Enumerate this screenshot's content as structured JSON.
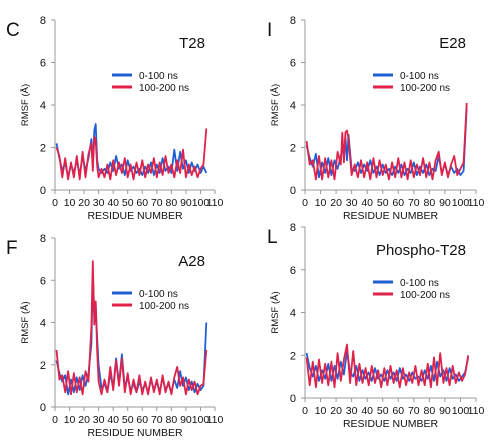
{
  "chart_data": [
    {
      "type": "line",
      "panel_letter": "C",
      "title": "T28",
      "xlabel": "RESIDUE NUMBER",
      "ylabel": "RMSF (Å)",
      "xlim": [
        0,
        110
      ],
      "ylim": [
        0,
        8
      ],
      "xticks": [
        0,
        10,
        20,
        30,
        40,
        50,
        60,
        70,
        80,
        90,
        100,
        110
      ],
      "yticks": [
        0,
        2,
        4,
        6,
        8
      ],
      "legend_position": "top-right",
      "grid": false,
      "series": [
        {
          "name": "0-100 ns",
          "color": "#1f5fd6",
          "x": [
            1,
            3,
            5,
            7,
            9,
            11,
            13,
            15,
            17,
            19,
            21,
            23,
            25,
            26,
            27,
            28,
            29,
            30,
            32,
            34,
            36,
            38,
            40,
            42,
            44,
            46,
            48,
            50,
            52,
            54,
            56,
            58,
            60,
            62,
            64,
            66,
            68,
            70,
            72,
            74,
            76,
            78,
            80,
            82,
            84,
            86,
            88,
            90,
            92,
            94,
            96,
            98,
            100,
            102,
            104
          ],
          "values": [
            2.2,
            1.5,
            0.9,
            1.3,
            0.6,
            1.2,
            0.8,
            1.4,
            0.7,
            1.6,
            0.9,
            1.5,
            2.4,
            1.2,
            2.8,
            3.1,
            1.4,
            1.0,
            0.8,
            1.0,
            0.8,
            1.3,
            0.9,
            1.6,
            1.0,
            1.2,
            0.7,
            1.4,
            0.9,
            1.1,
            0.8,
            1.0,
            0.7,
            1.1,
            0.8,
            1.3,
            0.7,
            1.2,
            0.8,
            1.5,
            0.9,
            1.1,
            0.8,
            1.9,
            0.9,
            1.8,
            1.0,
            1.4,
            0.8,
            1.3,
            0.9,
            1.2,
            0.8,
            1.1,
            0.8
          ]
        },
        {
          "name": "100-200 ns",
          "color": "#e0224a",
          "x": [
            1,
            3,
            5,
            7,
            9,
            11,
            13,
            15,
            17,
            19,
            21,
            23,
            25,
            26,
            27,
            28,
            29,
            30,
            32,
            34,
            36,
            38,
            40,
            42,
            44,
            46,
            48,
            50,
            52,
            54,
            56,
            58,
            60,
            62,
            64,
            66,
            68,
            70,
            72,
            74,
            76,
            78,
            80,
            82,
            84,
            86,
            88,
            90,
            92,
            94,
            96,
            98,
            100,
            102,
            104
          ],
          "values": [
            2.0,
            1.6,
            0.6,
            1.5,
            0.5,
            1.3,
            0.6,
            1.6,
            0.5,
            1.8,
            0.6,
            1.7,
            2.2,
            0.9,
            2.5,
            2.3,
            1.1,
            0.6,
            1.0,
            0.6,
            1.2,
            0.5,
            1.4,
            0.7,
            1.3,
            0.8,
            1.5,
            0.6,
            1.2,
            0.5,
            1.3,
            0.7,
            1.4,
            0.6,
            1.2,
            0.8,
            1.5,
            0.6,
            1.3,
            0.7,
            1.6,
            0.8,
            1.2,
            0.6,
            1.4,
            0.8,
            1.9,
            0.6,
            1.2,
            0.7,
            1.1,
            0.6,
            1.0,
            1.2,
            2.9
          ]
        }
      ]
    },
    {
      "type": "line",
      "panel_letter": "I",
      "title": "E28",
      "xlabel": "RESIDUE NUMBER",
      "ylabel": "RMSF (Å)",
      "xlim": [
        0,
        110
      ],
      "ylim": [
        0,
        8
      ],
      "xticks": [
        0,
        10,
        20,
        30,
        40,
        50,
        60,
        70,
        80,
        90,
        100,
        110
      ],
      "yticks": [
        0,
        2,
        4,
        6,
        8
      ],
      "legend_position": "top-right",
      "grid": false,
      "series": [
        {
          "name": "0-100 ns",
          "color": "#1f5fd6",
          "x": [
            1,
            3,
            5,
            7,
            9,
            11,
            13,
            15,
            17,
            19,
            21,
            23,
            24,
            25,
            26,
            27,
            28,
            30,
            32,
            34,
            36,
            38,
            40,
            42,
            44,
            46,
            48,
            50,
            52,
            54,
            56,
            58,
            60,
            62,
            64,
            66,
            68,
            70,
            72,
            74,
            76,
            78,
            80,
            82,
            84,
            86,
            88,
            90,
            92,
            94,
            96,
            98,
            100,
            102,
            104
          ],
          "values": [
            2.1,
            1.5,
            1.1,
            1.7,
            0.6,
            1.3,
            0.8,
            1.5,
            0.7,
            1.4,
            1.0,
            1.6,
            2.0,
            1.6,
            2.5,
            1.4,
            2.6,
            1.0,
            0.9,
            1.3,
            0.8,
            1.2,
            0.9,
            1.4,
            0.8,
            1.1,
            0.7,
            1.2,
            0.8,
            1.0,
            0.7,
            1.1,
            0.8,
            1.2,
            0.7,
            1.0,
            0.8,
            1.3,
            0.7,
            1.1,
            0.8,
            1.2,
            0.7,
            1.0,
            0.9,
            1.6,
            0.8,
            1.2,
            0.7,
            1.1,
            0.8,
            1.0,
            0.7,
            0.9,
            3.9
          ]
        },
        {
          "name": "100-200 ns",
          "color": "#e0224a",
          "x": [
            1,
            3,
            5,
            7,
            9,
            11,
            13,
            15,
            17,
            19,
            21,
            23,
            24,
            25,
            26,
            27,
            28,
            30,
            32,
            34,
            36,
            38,
            40,
            42,
            44,
            46,
            48,
            50,
            52,
            54,
            56,
            58,
            60,
            62,
            64,
            66,
            68,
            70,
            72,
            74,
            76,
            78,
            80,
            82,
            84,
            86,
            88,
            90,
            92,
            94,
            96,
            98,
            100,
            102,
            104
          ],
          "values": [
            2.3,
            1.2,
            1.4,
            0.5,
            1.6,
            0.5,
            1.5,
            0.6,
            1.4,
            0.5,
            1.8,
            1.2,
            2.7,
            1.3,
            2.7,
            2.8,
            2.4,
            0.7,
            1.2,
            0.6,
            1.4,
            0.6,
            1.3,
            0.5,
            1.5,
            0.6,
            1.4,
            0.7,
            1.2,
            0.5,
            1.3,
            0.6,
            1.5,
            0.6,
            1.3,
            0.5,
            1.4,
            0.6,
            1.2,
            0.7,
            1.5,
            0.6,
            1.3,
            0.5,
            1.4,
            1.8,
            0.7,
            1.3,
            0.6,
            1.2,
            1.6,
            0.7,
            1.0,
            1.3,
            4.1
          ]
        }
      ]
    },
    {
      "type": "line",
      "panel_letter": "F",
      "title": "A28",
      "xlabel": "RESIDUE NUMBER",
      "ylabel": "RMSF (Å)",
      "xlim": [
        0,
        110
      ],
      "ylim": [
        0,
        8
      ],
      "xticks": [
        0,
        10,
        20,
        30,
        40,
        50,
        60,
        70,
        80,
        90,
        100,
        110
      ],
      "yticks": [
        0,
        2,
        4,
        6,
        8
      ],
      "legend_position": "top-right",
      "grid": false,
      "series": [
        {
          "name": "0-100 ns",
          "color": "#1f5fd6",
          "x": [
            1,
            3,
            5,
            7,
            9,
            11,
            13,
            15,
            17,
            19,
            21,
            23,
            25,
            26,
            27,
            28,
            29,
            30,
            32,
            34,
            36,
            38,
            40,
            42,
            44,
            46,
            48,
            50,
            52,
            54,
            56,
            58,
            60,
            62,
            64,
            66,
            68,
            70,
            72,
            74,
            76,
            78,
            80,
            82,
            84,
            86,
            88,
            90,
            92,
            94,
            96,
            98,
            100,
            102,
            104
          ],
          "values": [
            2.2,
            1.6,
            1.2,
            1.5,
            0.6,
            1.3,
            0.7,
            1.4,
            0.8,
            1.5,
            1.0,
            1.6,
            3.0,
            6.2,
            4.5,
            4.8,
            3.2,
            2.0,
            0.9,
            1.1,
            0.7,
            1.6,
            0.9,
            2.3,
            1.1,
            2.5,
            0.9,
            1.4,
            0.8,
            1.1,
            0.7,
            1.2,
            0.8,
            1.1,
            0.7,
            1.3,
            0.8,
            1.2,
            0.7,
            1.4,
            0.8,
            1.1,
            0.7,
            1.3,
            0.9,
            1.7,
            1.0,
            1.4,
            0.8,
            1.2,
            0.7,
            1.1,
            0.8,
            1.0,
            4.0
          ]
        },
        {
          "name": "100-200 ns",
          "color": "#e0224a",
          "x": [
            1,
            3,
            5,
            7,
            9,
            11,
            13,
            15,
            17,
            19,
            21,
            23,
            25,
            26,
            27,
            28,
            29,
            30,
            32,
            34,
            36,
            38,
            40,
            42,
            44,
            46,
            48,
            50,
            52,
            54,
            56,
            58,
            60,
            62,
            64,
            66,
            68,
            70,
            72,
            74,
            76,
            78,
            80,
            82,
            84,
            86,
            88,
            90,
            92,
            94,
            96,
            98,
            100,
            102,
            104
          ],
          "values": [
            2.7,
            1.3,
            1.5,
            0.7,
            1.7,
            0.6,
            1.6,
            0.7,
            1.4,
            0.6,
            1.7,
            1.2,
            3.8,
            6.9,
            3.9,
            5.0,
            2.6,
            1.2,
            0.6,
            1.3,
            0.7,
            1.9,
            0.8,
            2.2,
            1.0,
            2.3,
            0.7,
            1.6,
            0.6,
            1.3,
            0.7,
            1.5,
            0.6,
            1.2,
            0.6,
            1.4,
            0.7,
            1.3,
            0.6,
            1.5,
            0.7,
            1.2,
            0.6,
            1.4,
            1.9,
            1.0,
            1.4,
            0.6,
            1.3,
            0.8,
            1.2,
            0.6,
            1.0,
            1.1,
            2.7
          ]
        }
      ]
    },
    {
      "type": "line",
      "panel_letter": "L",
      "title": "Phospho-T28",
      "xlabel": "RESIDUE NUMBER",
      "ylabel": "RMSF (Å)",
      "xlim": [
        0,
        110
      ],
      "ylim": [
        0,
        8
      ],
      "xticks": [
        0,
        10,
        20,
        30,
        40,
        50,
        60,
        70,
        80,
        90,
        100,
        110
      ],
      "yticks": [
        0,
        2,
        4,
        6,
        8
      ],
      "legend_position": "top-right",
      "grid": false,
      "series": [
        {
          "name": "0-100 ns",
          "color": "#1f5fd6",
          "x": [
            1,
            3,
            5,
            7,
            9,
            11,
            13,
            15,
            17,
            19,
            21,
            23,
            25,
            27,
            29,
            31,
            33,
            35,
            37,
            39,
            41,
            43,
            45,
            47,
            49,
            51,
            53,
            55,
            57,
            59,
            61,
            63,
            65,
            67,
            69,
            71,
            73,
            75,
            77,
            79,
            81,
            83,
            85,
            87,
            89,
            91,
            93,
            95,
            97,
            99,
            101,
            103,
            105
          ],
          "values": [
            2.1,
            1.4,
            1.0,
            1.5,
            0.8,
            1.3,
            0.9,
            1.6,
            0.8,
            1.5,
            0.9,
            1.7,
            1.1,
            2.2,
            1.2,
            1.0,
            1.5,
            0.8,
            1.3,
            0.9,
            1.2,
            0.8,
            1.4,
            0.9,
            1.1,
            0.8,
            1.3,
            0.9,
            1.2,
            0.8,
            1.4,
            0.9,
            1.1,
            0.8,
            1.2,
            0.9,
            1.0,
            0.8,
            1.3,
            0.9,
            1.5,
            0.8,
            1.7,
            1.0,
            1.3,
            0.8,
            1.4,
            0.9,
            1.1,
            0.8,
            1.0,
            1.2,
            1.9
          ]
        },
        {
          "name": "100-200 ns",
          "color": "#e0224a",
          "x": [
            1,
            3,
            5,
            7,
            9,
            11,
            13,
            15,
            17,
            19,
            21,
            23,
            25,
            27,
            29,
            31,
            33,
            35,
            37,
            39,
            41,
            43,
            45,
            47,
            49,
            51,
            53,
            55,
            57,
            59,
            61,
            63,
            65,
            67,
            69,
            71,
            73,
            75,
            77,
            79,
            81,
            83,
            85,
            87,
            89,
            91,
            93,
            95,
            97,
            99,
            101,
            103,
            105
          ],
          "values": [
            1.9,
            0.6,
            1.7,
            0.5,
            1.8,
            0.7,
            1.6,
            0.6,
            1.7,
            0.5,
            2.1,
            0.8,
            1.8,
            2.5,
            0.7,
            2.2,
            0.6,
            1.6,
            0.7,
            1.4,
            0.6,
            1.5,
            0.7,
            1.3,
            0.5,
            1.4,
            0.6,
            1.5,
            0.7,
            1.3,
            0.5,
            1.4,
            0.6,
            1.2,
            0.7,
            1.5,
            0.6,
            1.3,
            0.6,
            1.6,
            0.5,
            1.9,
            0.6,
            2.1,
            0.7,
            1.4,
            0.6,
            1.5,
            0.7,
            1.2,
            0.8,
            1.1,
            2.0
          ]
        }
      ]
    }
  ]
}
